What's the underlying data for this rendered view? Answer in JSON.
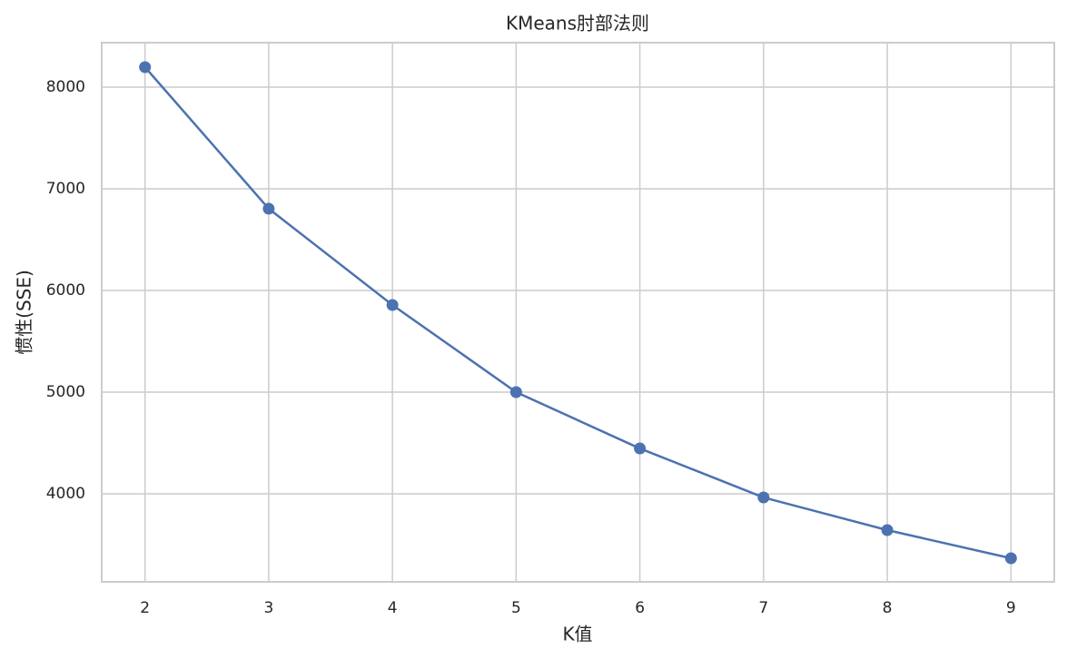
{
  "chart_data": {
    "type": "line",
    "title": "KMeans肘部法则",
    "x_label": "K值",
    "y_label": "惯性(SSE)",
    "x": [
      2,
      3,
      4,
      5,
      6,
      7,
      8,
      9
    ],
    "series": [
      {
        "color": "#4c72b0",
        "values": [
          8196,
          6804,
          5857,
          5000,
          4446,
          3964,
          3643,
          3366
        ]
      }
    ],
    "xlim": [
      1.65,
      9.35
    ],
    "xticks": [
      2,
      3,
      4,
      5,
      6,
      7,
      8,
      9
    ],
    "ylim": [
      3134,
      8437
    ],
    "yticks": [
      4000,
      5000,
      6000,
      7000,
      8000
    ],
    "grid": true,
    "markers": true
  }
}
